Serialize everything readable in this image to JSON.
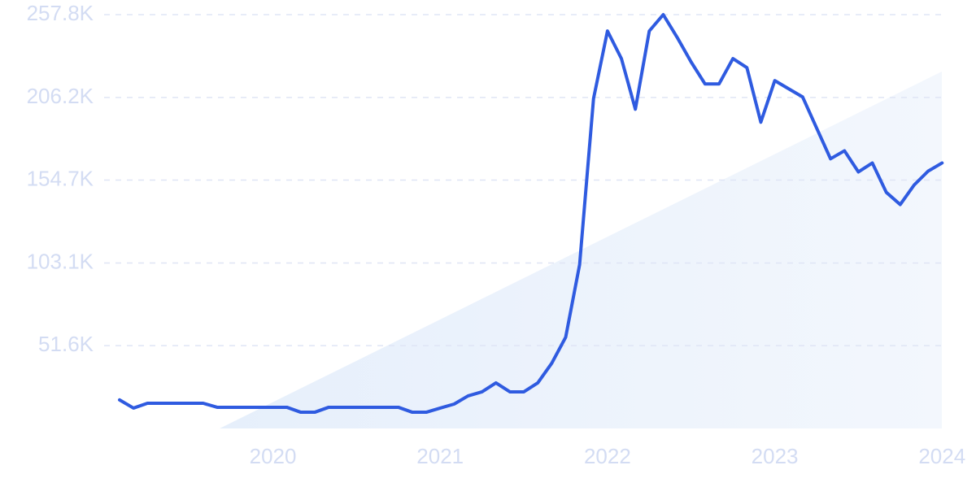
{
  "chart_data": {
    "type": "line",
    "categories": [
      null,
      null,
      null,
      null,
      null,
      null,
      null,
      null,
      null,
      null,
      null,
      "2020",
      null,
      null,
      null,
      null,
      null,
      null,
      null,
      null,
      null,
      null,
      null,
      "2021",
      null,
      null,
      null,
      null,
      null,
      null,
      null,
      null,
      null,
      null,
      null,
      "2022",
      null,
      null,
      null,
      null,
      null,
      null,
      null,
      null,
      null,
      null,
      null,
      "2023",
      null,
      null,
      null,
      null,
      null,
      null,
      null,
      null,
      null,
      null,
      null,
      "2024"
    ],
    "values": [
      17800,
      12700,
      15700,
      15700,
      15700,
      15700,
      15700,
      13200,
      13200,
      13200,
      13200,
      13200,
      13200,
      10100,
      10100,
      13200,
      13200,
      13200,
      13200,
      13200,
      13200,
      10100,
      10100,
      12700,
      15200,
      20300,
      22800,
      28400,
      22800,
      22800,
      28400,
      40600,
      56800,
      102000,
      205500,
      247600,
      230400,
      198900,
      247600,
      257800,
      243600,
      228300,
      214600,
      214600,
      230400,
      224800,
      190800,
      216700,
      211600,
      206500,
      187200,
      168000,
      173000,
      159800,
      165400,
      147100,
      139500,
      151700,
      160300,
      165400
    ],
    "color": "#2f5be0",
    "ylim": [
      0,
      257800
    ],
    "yticks": [
      {
        "value": 51600,
        "label": "51.6K"
      },
      {
        "value": 103100,
        "label": "103.1K"
      },
      {
        "value": 154700,
        "label": "154.7K"
      },
      {
        "value": 206200,
        "label": "206.2K"
      },
      {
        "value": 257800,
        "label": "257.8K"
      }
    ],
    "grid": true
  }
}
